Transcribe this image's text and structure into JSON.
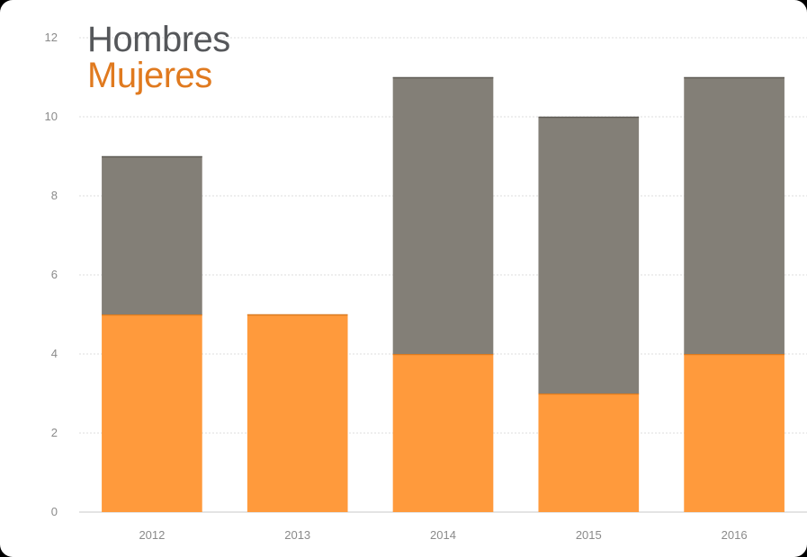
{
  "chart_data": {
    "type": "bar",
    "stacked": true,
    "categories": [
      "2012",
      "2013",
      "2014",
      "2015",
      "2016"
    ],
    "series": [
      {
        "name": "Mujeres",
        "values": [
          5,
          5,
          4,
          3,
          4
        ],
        "color": "#FF9A3C"
      },
      {
        "name": "Hombres",
        "values": [
          4,
          0,
          7,
          7,
          7
        ],
        "color": "#837F77"
      }
    ],
    "ylim": [
      0,
      12
    ],
    "yticks": [
      "0",
      "2",
      "4",
      "6",
      "8",
      "10",
      "12"
    ],
    "grid": true,
    "legend": "top-left"
  },
  "legend_colors": {
    "hombres": "#55575A",
    "mujeres": "#E07A1F"
  },
  "frame_color": "#000000"
}
